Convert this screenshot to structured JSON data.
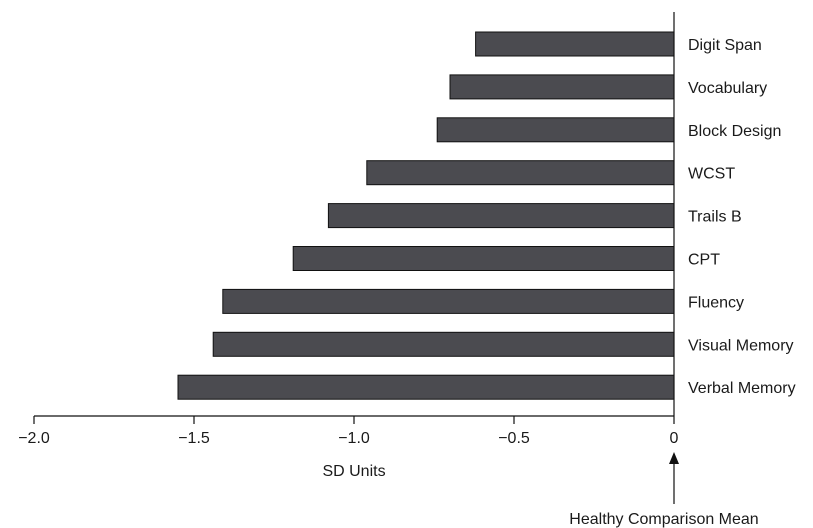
{
  "chart_data": {
    "type": "bar",
    "orientation": "horizontal",
    "categories": [
      "Digit Span",
      "Vocabulary",
      "Block Design",
      "WCST",
      "Trails B",
      "CPT",
      "Fluency",
      "Visual Memory",
      "Verbal Memory"
    ],
    "values": [
      -0.62,
      -0.7,
      -0.74,
      -0.96,
      -1.08,
      -1.19,
      -1.41,
      -1.44,
      -1.55
    ],
    "xlabel": "SD Units",
    "xlim": [
      -2.0,
      0
    ],
    "xticks": [
      -2.0,
      -1.5,
      -1.0,
      -0.5,
      0
    ],
    "xtick_labels": [
      "−2.0",
      "−1.5",
      "−1.0",
      "−0.5",
      "0"
    ],
    "reference_label": "Healthy Comparison Mean",
    "grid": false,
    "bar_color": "#4b4b50"
  }
}
